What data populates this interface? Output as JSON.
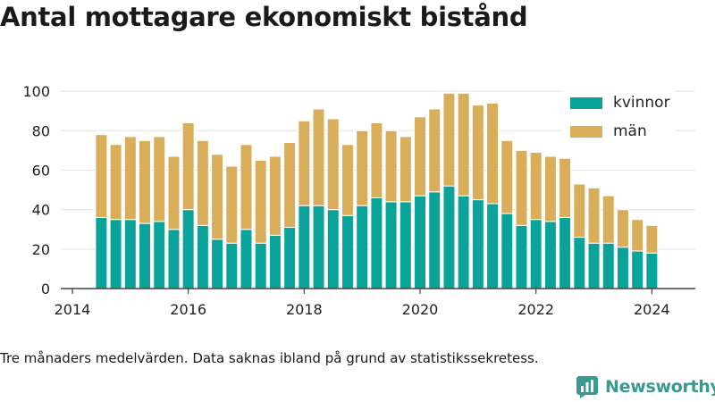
{
  "title": "Antal mottagare ekonomiskt bistånd",
  "note": "Tre månaders medelvärden. Data saknas ibland på grund av statistikssekretess.",
  "brand": {
    "name": "Newsworthy",
    "logo_icon": "newsworthy-chart-icon"
  },
  "colors": {
    "kvinnor": "#0aa39a",
    "man": "#d9ae5a",
    "grid": "#e3e3e3",
    "axis": "#444444"
  },
  "legend": [
    {
      "label": "kvinnor",
      "color": "#0aa39a"
    },
    {
      "label": "män",
      "color": "#d9ae5a"
    }
  ],
  "chart_data": {
    "type": "bar",
    "stacked": true,
    "title": "Antal mottagare ekonomiskt bistånd",
    "xlabel": "",
    "ylabel": "",
    "xlim": [
      2013.8,
      2024.75
    ],
    "ylim": [
      0,
      110
    ],
    "yticks": [
      0,
      20,
      40,
      60,
      80,
      100
    ],
    "xticks": [
      2014,
      2016,
      2018,
      2020,
      2022,
      2024
    ],
    "grid": "horizontal",
    "legend_position": "top-right",
    "x": [
      2014.5,
      2014.75,
      2015.0,
      2015.25,
      2015.5,
      2015.75,
      2016.0,
      2016.25,
      2016.5,
      2016.75,
      2017.0,
      2017.25,
      2017.5,
      2017.75,
      2018.0,
      2018.25,
      2018.5,
      2018.75,
      2019.0,
      2019.25,
      2019.5,
      2019.75,
      2020.0,
      2020.25,
      2020.5,
      2020.75,
      2021.0,
      2021.25,
      2021.5,
      2021.75,
      2022.0,
      2022.25,
      2022.5,
      2022.75,
      2023.0,
      2023.25,
      2023.5,
      2023.75,
      2024.0
    ],
    "series": [
      {
        "name": "kvinnor",
        "values": [
          36,
          35,
          35,
          33,
          34,
          30,
          40,
          32,
          25,
          23,
          30,
          23,
          27,
          31,
          42,
          42,
          40,
          37,
          42,
          46,
          44,
          44,
          47,
          49,
          52,
          47,
          45,
          43,
          38,
          32,
          35,
          34,
          36,
          26,
          23,
          23,
          21,
          19,
          18
        ]
      },
      {
        "name": "män",
        "values": [
          42,
          38,
          42,
          42,
          43,
          37,
          44,
          43,
          43,
          39,
          43,
          42,
          40,
          43,
          43,
          49,
          46,
          36,
          38,
          38,
          36,
          33,
          40,
          42,
          47,
          52,
          48,
          51,
          37,
          38,
          34,
          33,
          30,
          27,
          28,
          24,
          19,
          16,
          14
        ]
      }
    ]
  }
}
